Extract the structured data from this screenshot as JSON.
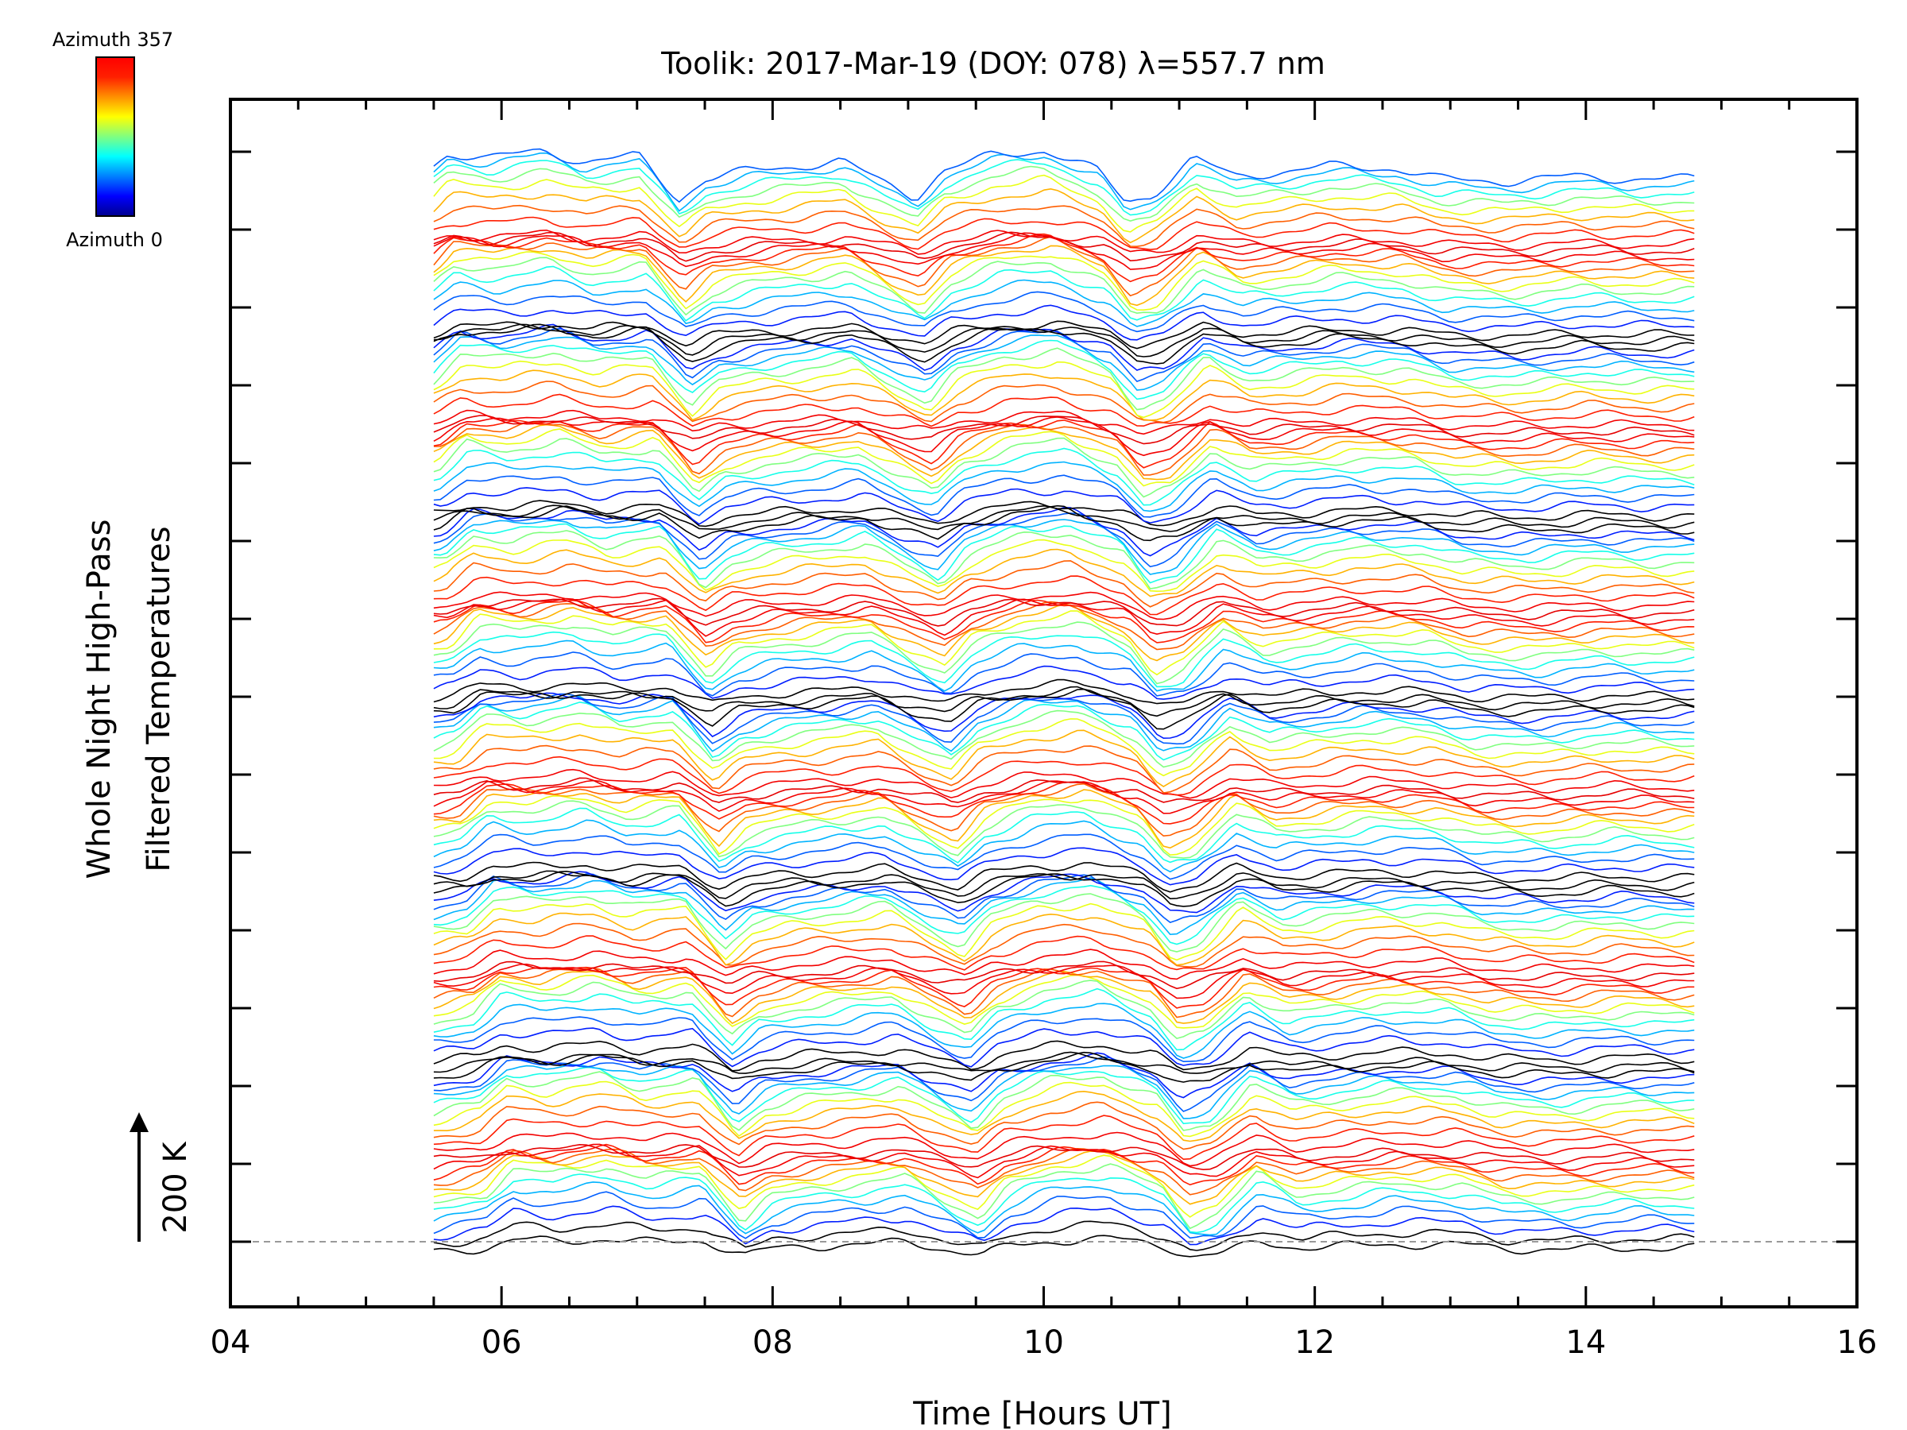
{
  "chart_data": {
    "type": "line",
    "title": "Toolik: 2017-Mar-19 (DOY: 078) λ=557.7 nm",
    "xlabel": "Time [Hours UT]",
    "ylabel_lines": [
      "Whole Night High-Pass",
      "Filtered Temperatures"
    ],
    "xlim": [
      4,
      16
    ],
    "x_ticks": [
      "04",
      "06",
      "08",
      "10",
      "12",
      "14",
      "16"
    ],
    "x_range_data": [
      5.5,
      14.8
    ],
    "scale_bar_label": "200 K",
    "colorbar": {
      "top_label": "Azimuth 357",
      "bottom_label": "Azimuth 0",
      "min": 0,
      "max": 357
    },
    "trace_count": 142,
    "trace_offset_note": "stacked traces, each offset upward; colour = azimuth",
    "series_shape": {
      "x": [
        5.5,
        5.9,
        6.1,
        6.4,
        6.8,
        7.1,
        7.5,
        7.8,
        8.0,
        8.3,
        8.7,
        9.0,
        9.3,
        9.55,
        9.75,
        10.1,
        10.5,
        10.9,
        11.1,
        11.3,
        11.6,
        11.9,
        12.3,
        12.6,
        13.1,
        13.4,
        13.9,
        14.4,
        14.8
      ],
      "y": [
        0,
        40,
        130,
        110,
        140,
        95,
        120,
        -50,
        30,
        60,
        80,
        100,
        20,
        -40,
        60,
        120,
        140,
        60,
        -60,
        -30,
        110,
        40,
        60,
        80,
        70,
        30,
        20,
        40,
        30
      ]
    },
    "colors": {
      "jet": [
        "#00008f",
        "#0000ff",
        "#0080ff",
        "#00ffff",
        "#80ff80",
        "#ffff00",
        "#ff8000",
        "#ff0000",
        "#800000"
      ],
      "baseline": "#999999",
      "axis": "#000000"
    }
  }
}
